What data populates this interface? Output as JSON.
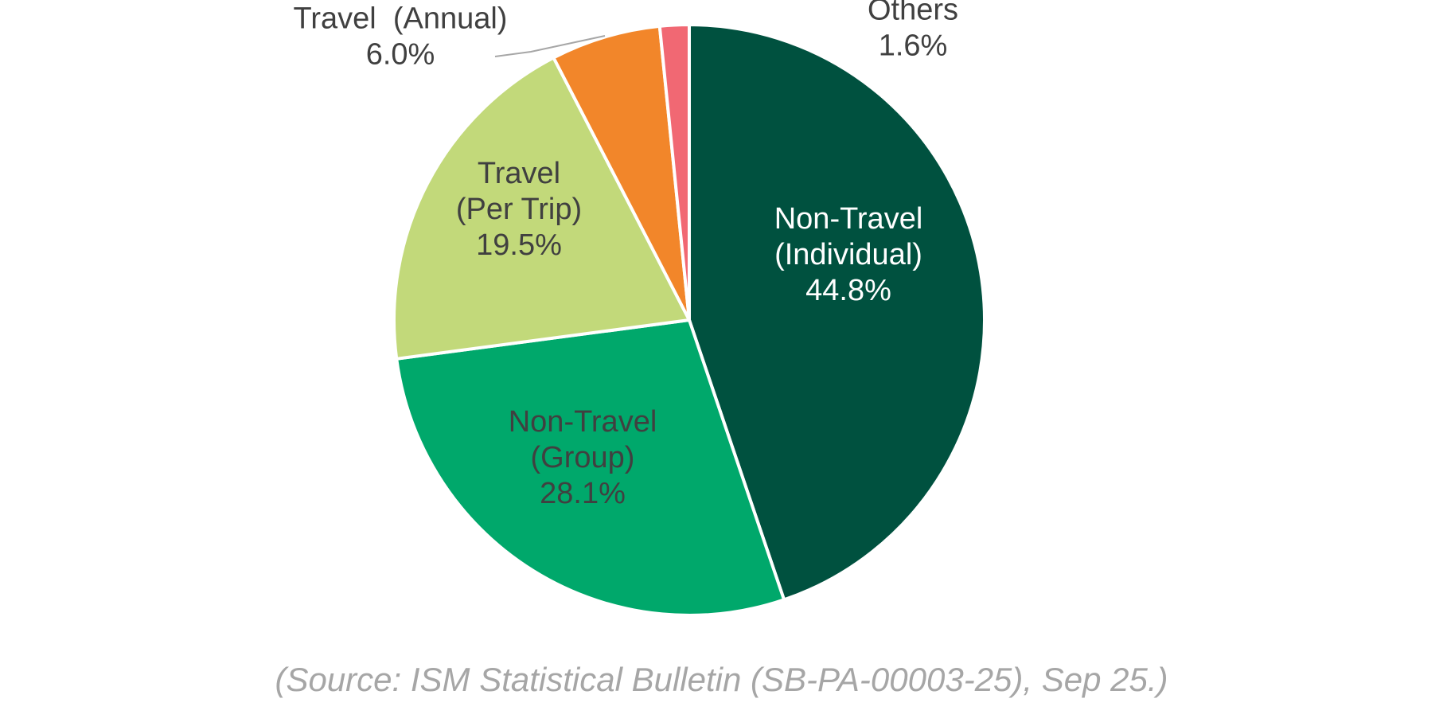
{
  "chart_data": {
    "type": "pie",
    "title": "",
    "start_angle_deg": 0,
    "direction": "clockwise",
    "slices": [
      {
        "name": "Non-Travel (Individual)",
        "label_lines": [
          "Non-Travel",
          "(Individual)"
        ],
        "value": 44.8,
        "value_label": "44.8%",
        "color": "#00513f",
        "label_color": "#ffffff",
        "label_position": "inside"
      },
      {
        "name": "Non-Travel (Group)",
        "label_lines": [
          "Non-Travel",
          "(Group)"
        ],
        "value": 28.1,
        "value_label": "28.1%",
        "color": "#00a86b",
        "label_color": "#404040",
        "label_position": "inside"
      },
      {
        "name": "Travel (Per Trip)",
        "label_lines": [
          "Travel",
          "(Per Trip)"
        ],
        "value": 19.5,
        "value_label": "19.5%",
        "color": "#c2d97a",
        "label_color": "#404040",
        "label_position": "inside"
      },
      {
        "name": "Travel (Annual)",
        "label_lines": [
          "Travel  (Annual)"
        ],
        "value": 6.0,
        "value_label": "6.0%",
        "color": "#f2862a",
        "label_color": "#404040",
        "label_position": "outside-leader"
      },
      {
        "name": "Others",
        "label_lines": [
          "Others"
        ],
        "value": 1.6,
        "value_label": "1.6%",
        "color": "#f16873",
        "label_color": "#404040",
        "label_position": "outside"
      }
    ]
  },
  "source_note": "(Source: ISM Statistical Bulletin (SB-PA-00003-25), Sep 25.)"
}
